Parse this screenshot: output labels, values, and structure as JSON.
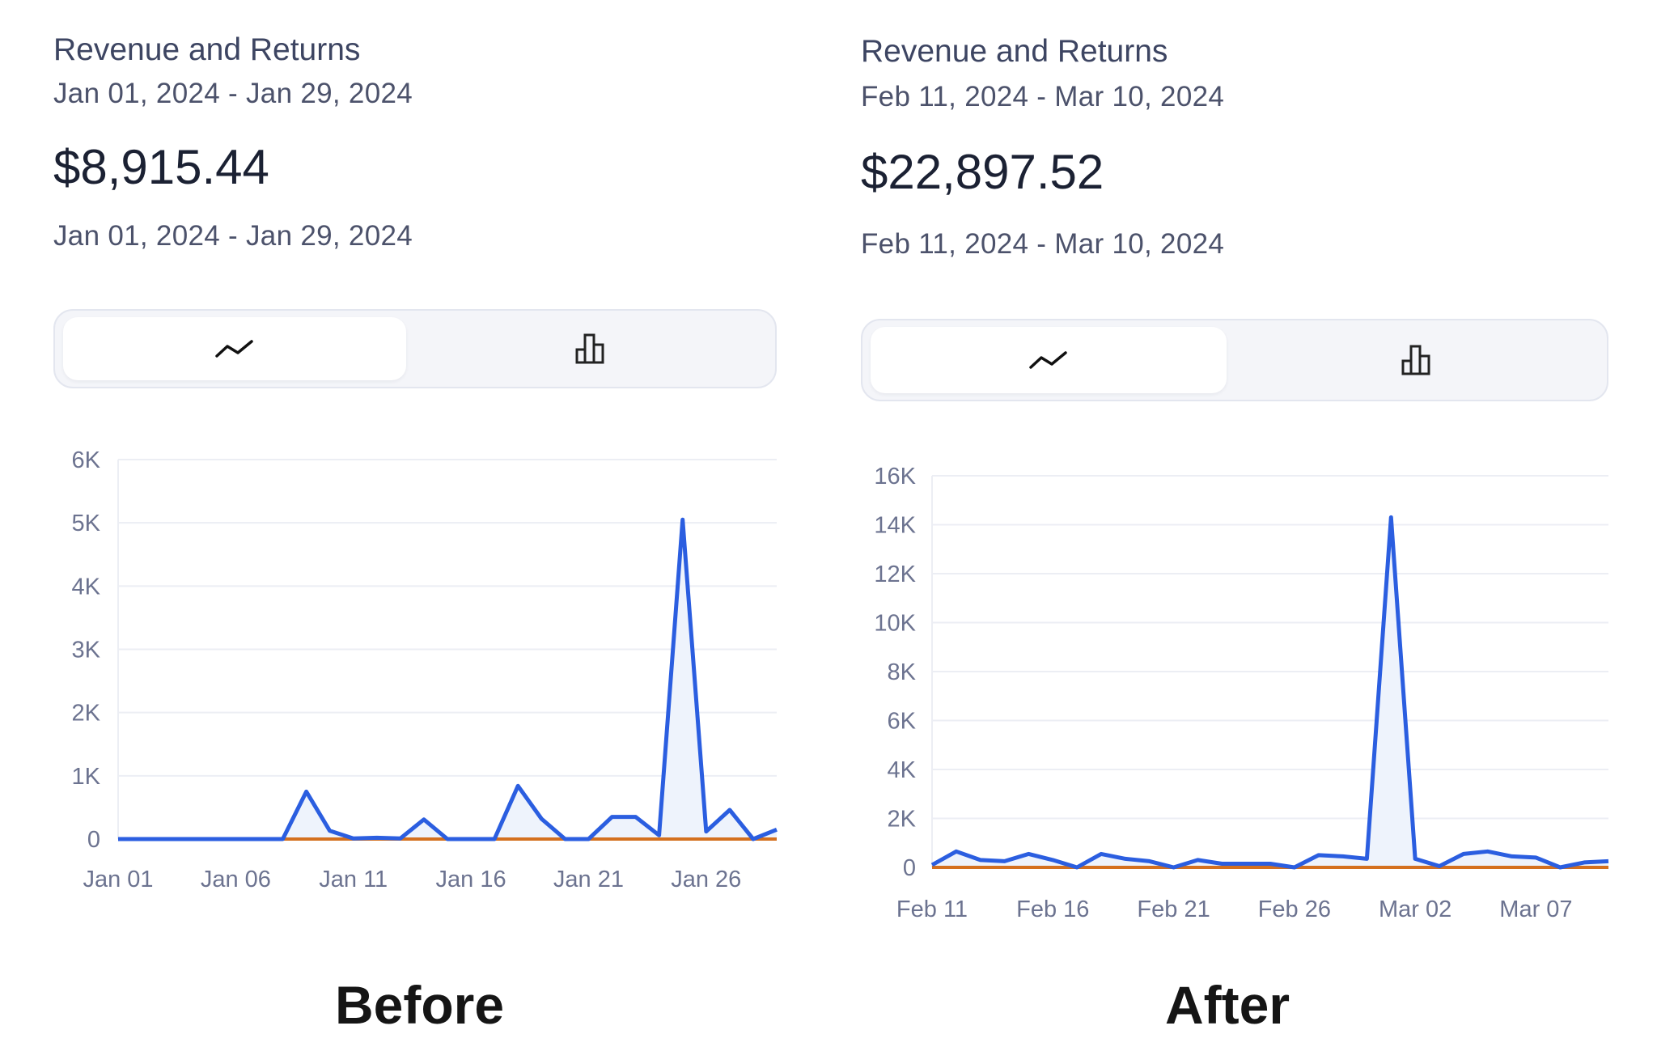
{
  "before": {
    "title": "Revenue and Returns",
    "date_range": "Jan 01, 2024 - Jan 29, 2024",
    "amount": "$8,915.44",
    "date_range_repeat": "Jan 01, 2024 - Jan 29, 2024",
    "toggle": {
      "line_icon": "line-chart-icon",
      "bar_icon": "bar-chart-icon",
      "selected": "line"
    }
  },
  "after": {
    "title": "Revenue and Returns",
    "date_range": "Feb 11, 2024 - Mar 10, 2024",
    "amount": "$22,897.52",
    "date_range_repeat": "Feb 11, 2024 - Mar 10, 2024",
    "toggle": {
      "line_icon": "line-chart-icon",
      "bar_icon": "bar-chart-icon",
      "selected": "line"
    }
  },
  "captions": {
    "before": "Before",
    "after": "After"
  },
  "colors": {
    "revenue_line": "#2b5ee0",
    "returns_line": "#d4701f",
    "area_fill": "#eef3fc",
    "grid": "#eceef4"
  },
  "chart_data": [
    {
      "type": "line",
      "x": [
        "Jan 01",
        "Jan 02",
        "Jan 03",
        "Jan 04",
        "Jan 05",
        "Jan 06",
        "Jan 07",
        "Jan 08",
        "Jan 09",
        "Jan 10",
        "Jan 11",
        "Jan 12",
        "Jan 13",
        "Jan 14",
        "Jan 15",
        "Jan 16",
        "Jan 17",
        "Jan 18",
        "Jan 19",
        "Jan 20",
        "Jan 21",
        "Jan 22",
        "Jan 23",
        "Jan 24",
        "Jan 25",
        "Jan 26",
        "Jan 27",
        "Jan 28",
        "Jan 29"
      ],
      "x_ticks": [
        "Jan 01",
        "Jan 06",
        "Jan 11",
        "Jan 16",
        "Jan 21",
        "Jan 26"
      ],
      "series": [
        {
          "values": [
            0,
            0,
            0,
            0,
            0,
            0,
            0,
            0,
            750,
            130,
            10,
            20,
            10,
            310,
            0,
            0,
            0,
            840,
            320,
            0,
            0,
            350,
            350,
            60,
            5050,
            120,
            460,
            0,
            150
          ]
        },
        {
          "values": [
            0,
            0,
            0,
            0,
            0,
            0,
            0,
            0,
            0,
            0,
            0,
            0,
            0,
            0,
            0,
            0,
            0,
            0,
            0,
            0,
            0,
            0,
            0,
            0,
            0,
            0,
            0,
            0,
            0
          ]
        }
      ],
      "y_ticks": [
        "0",
        "1K",
        "2K",
        "3K",
        "4K",
        "5K",
        "6K"
      ],
      "ylim": [
        0,
        6000
      ],
      "grid": true,
      "area_fill": true
    },
    {
      "type": "line",
      "x": [
        "Feb 11",
        "Feb 12",
        "Feb 13",
        "Feb 14",
        "Feb 15",
        "Feb 16",
        "Feb 17",
        "Feb 18",
        "Feb 19",
        "Feb 20",
        "Feb 21",
        "Feb 22",
        "Feb 23",
        "Feb 24",
        "Feb 25",
        "Feb 26",
        "Feb 27",
        "Feb 28",
        "Feb 29",
        "Mar 01",
        "Mar 02",
        "Mar 03",
        "Mar 04",
        "Mar 05",
        "Mar 06",
        "Mar 07",
        "Mar 08",
        "Mar 09",
        "Mar 10"
      ],
      "x_ticks": [
        "Feb 11",
        "Feb 16",
        "Feb 21",
        "Feb 26",
        "Mar 02",
        "Mar 07"
      ],
      "series": [
        {
          "values": [
            100,
            650,
            300,
            250,
            550,
            300,
            0,
            550,
            350,
            250,
            0,
            300,
            150,
            150,
            150,
            0,
            500,
            450,
            350,
            14300,
            350,
            50,
            550,
            650,
            450,
            400,
            0,
            200,
            250
          ]
        },
        {
          "values": [
            0,
            0,
            0,
            0,
            0,
            0,
            0,
            0,
            0,
            0,
            0,
            0,
            0,
            0,
            0,
            0,
            0,
            0,
            0,
            0,
            0,
            0,
            0,
            0,
            0,
            0,
            0,
            0,
            0
          ]
        }
      ],
      "y_ticks": [
        "0",
        "2K",
        "4K",
        "6K",
        "8K",
        "10K",
        "12K",
        "14K",
        "16K"
      ],
      "ylim": [
        0,
        16000
      ],
      "grid": true,
      "area_fill": true
    }
  ]
}
